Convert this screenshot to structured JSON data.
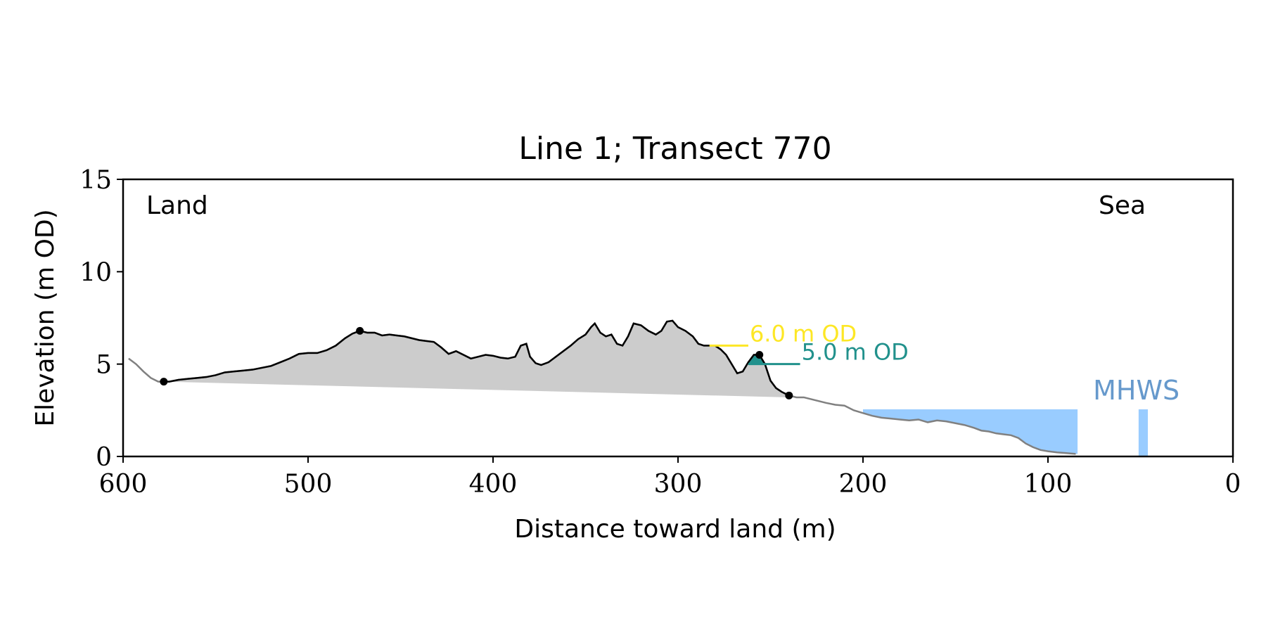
{
  "chart_data": {
    "type": "area",
    "title": "Line 1; Transect 770",
    "xlabel": "Distance toward land (m)",
    "ylabel": "Elevation (m OD)",
    "xlim": [
      600,
      0
    ],
    "ylim": [
      0,
      15
    ],
    "x_ticks": [
      600,
      500,
      400,
      300,
      200,
      100,
      0
    ],
    "y_ticks": [
      0,
      5,
      10,
      15
    ],
    "grid": false,
    "annotations": {
      "land": "Land",
      "sea": "Sea"
    },
    "colors": {
      "profile_full": "#808080",
      "profile_dune": "#000000",
      "dune_fill": "#cccccc",
      "level_6": "#fde725",
      "level_5": "#21918c",
      "mhws_fill": "#99ccff",
      "mhws_text": "#6699cc"
    },
    "profile": {
      "x": [
        597,
        593,
        589,
        585,
        581,
        578,
        575,
        570,
        565,
        560,
        555,
        550,
        545,
        540,
        535,
        530,
        525,
        520,
        515,
        510,
        505,
        500,
        495,
        490,
        485,
        480,
        476,
        472,
        468,
        464,
        460,
        456,
        452,
        448,
        444,
        440,
        436,
        432,
        428,
        424,
        420,
        416,
        412,
        408,
        404,
        400,
        396,
        392,
        388,
        385,
        382,
        380,
        377,
        374,
        370,
        366,
        362,
        358,
        354,
        350,
        347,
        345,
        342,
        339,
        336,
        333,
        330,
        327,
        324,
        320,
        316,
        312,
        309,
        306,
        303,
        300,
        296,
        292,
        289,
        286,
        283,
        280,
        277,
        274,
        271,
        268,
        265,
        262,
        259,
        256,
        253,
        250,
        247,
        244,
        240,
        236,
        232,
        228,
        224,
        220,
        215,
        210,
        205,
        200,
        195,
        190,
        185,
        180,
        175,
        170,
        165,
        160,
        155,
        150,
        145,
        140,
        136,
        132,
        128,
        124,
        120,
        116,
        112,
        108,
        104,
        100,
        95,
        90,
        85
      ],
      "y": [
        5.3,
        5.0,
        4.6,
        4.25,
        4.05,
        4.05,
        4.05,
        4.15,
        4.2,
        4.25,
        4.3,
        4.4,
        4.55,
        4.6,
        4.65,
        4.7,
        4.8,
        4.9,
        5.1,
        5.3,
        5.55,
        5.6,
        5.6,
        5.75,
        6.0,
        6.4,
        6.65,
        6.8,
        6.7,
        6.7,
        6.55,
        6.6,
        6.55,
        6.5,
        6.4,
        6.3,
        6.25,
        6.2,
        5.9,
        5.55,
        5.7,
        5.5,
        5.3,
        5.4,
        5.5,
        5.45,
        5.35,
        5.3,
        5.4,
        6.0,
        6.1,
        5.4,
        5.05,
        4.95,
        5.1,
        5.4,
        5.7,
        6.0,
        6.35,
        6.6,
        7.0,
        7.2,
        6.7,
        6.5,
        6.6,
        6.1,
        6.0,
        6.5,
        7.2,
        7.1,
        6.8,
        6.6,
        6.8,
        7.3,
        7.35,
        7.0,
        6.8,
        6.5,
        6.1,
        6.0,
        6.0,
        6.0,
        5.8,
        5.5,
        5.0,
        4.5,
        4.6,
        5.1,
        5.5,
        5.5,
        5.0,
        4.1,
        3.7,
        3.5,
        3.3,
        3.2,
        3.2,
        3.1,
        3.0,
        2.9,
        2.8,
        2.75,
        2.5,
        2.35,
        2.2,
        2.1,
        2.05,
        2.0,
        1.95,
        2.0,
        1.85,
        1.95,
        1.9,
        1.8,
        1.7,
        1.55,
        1.4,
        1.35,
        1.25,
        1.2,
        1.15,
        1.0,
        0.7,
        0.5,
        0.35,
        0.28,
        0.22,
        0.18,
        0.14
      ]
    },
    "dune_section": {
      "x_start": 578,
      "x_end": 240,
      "baseline_start": 4.05,
      "baseline_end": 3.2
    },
    "points": [
      {
        "x": 578,
        "y": 4.05
      },
      {
        "x": 472,
        "y": 6.8
      },
      {
        "x": 256,
        "y": 5.5
      },
      {
        "x": 240,
        "y": 3.3
      }
    ],
    "levels": [
      {
        "label": "6.0 m OD",
        "y": 6.0,
        "x_start": 283,
        "x_end": 262
      },
      {
        "label": "5.0 m OD",
        "y": 5.0,
        "x_start": 262,
        "x_end": 234
      }
    ],
    "mhws": {
      "label": "MHWS",
      "level": 2.55,
      "x_start": 200,
      "x_end": 84,
      "bar": [
        51,
        46
      ]
    }
  }
}
